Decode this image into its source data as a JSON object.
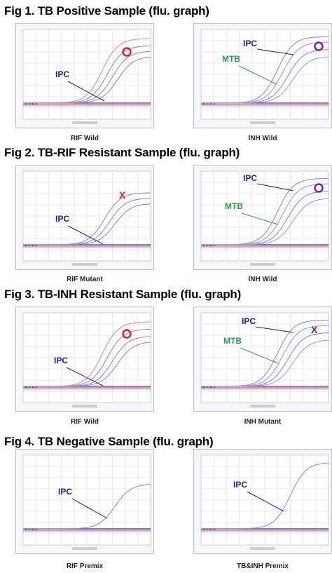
{
  "figures": [
    {
      "title": "Fig 1. TB Positive Sample (flu. graph)",
      "panels": [
        {
          "caption": "RIF Wild",
          "annotations": [
            {
              "text": "IPC",
              "color": "#1a1aa8"
            }
          ],
          "marker": {
            "type": "circle",
            "color": "#e02020"
          }
        },
        {
          "caption": "INH Wild",
          "annotations": [
            {
              "text": "IPC",
              "color": "#1a1aa8"
            },
            {
              "text": "MTB",
              "color": "#1fa14a"
            }
          ],
          "marker": {
            "type": "circle",
            "color": "#7a1fa8"
          }
        }
      ]
    },
    {
      "title": "Fig 2. TB-RIF Resistant Sample (flu. graph)",
      "panels": [
        {
          "caption": "RIF Mutant",
          "annotations": [
            {
              "text": "IPC",
              "color": "#1a1aa8"
            }
          ],
          "marker": {
            "type": "cross",
            "text": "X",
            "color": "#e02020"
          }
        },
        {
          "caption": "INH Wild",
          "annotations": [
            {
              "text": "IPC",
              "color": "#1a1aa8"
            },
            {
              "text": "MTB",
              "color": "#1fa14a"
            }
          ],
          "marker": {
            "type": "circle",
            "color": "#7a1fa8"
          }
        }
      ]
    },
    {
      "title": "Fig 3. TB-INH Resistant Sample (flu. graph)",
      "panels": [
        {
          "caption": "RIF Wild",
          "annotations": [
            {
              "text": "IPC",
              "color": "#1a1aa8"
            }
          ],
          "marker": {
            "type": "circle",
            "color": "#e02020"
          }
        },
        {
          "caption": "INH Mutant",
          "annotations": [
            {
              "text": "IPC",
              "color": "#1a1aa8"
            },
            {
              "text": "MTB",
              "color": "#1fa14a"
            }
          ],
          "marker": {
            "type": "cross",
            "text": "X",
            "color": "#7a1fa8"
          }
        }
      ]
    },
    {
      "title": "Fig 4. TB Negative Sample (flu. graph)",
      "panels": [
        {
          "caption": "RIF Premix",
          "annotations": [
            {
              "text": "IPC",
              "color": "#1a1aa8"
            }
          ],
          "marker": null
        },
        {
          "caption": "TB&INH Premix",
          "annotations": [
            {
              "text": "IPC",
              "color": "#1a1aa8"
            }
          ],
          "marker": null
        }
      ]
    }
  ],
  "chart_data": {
    "type": "line",
    "title": "",
    "xlabel": "",
    "ylabel": "",
    "grid": true,
    "curve_colors": {
      "ipc": "#8c8fd6",
      "mtb": "#9a9fe0",
      "target": "#f08a8a",
      "baseline_red": "#e04848",
      "baseline_blue": "#4a4ac8"
    }
  }
}
